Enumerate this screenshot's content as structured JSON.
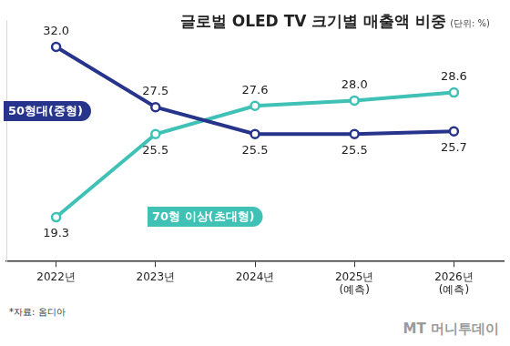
{
  "chart_data": {
    "type": "line",
    "title": "글로벌 OLED TV 크기별 매출액 비중",
    "subtitle": "(단위: %)",
    "categories": [
      "2022년",
      "2023년",
      "2024년",
      "2025년\n(예측)",
      "2026년\n(예측)"
    ],
    "series": [
      {
        "name": "50형대(중형)",
        "color": "#27348b",
        "values": [
          32.0,
          27.5,
          25.5,
          25.5,
          25.7
        ],
        "value_labels": [
          "32.0",
          "27.5",
          "25.5",
          "25.5",
          "25.7"
        ]
      },
      {
        "name": "70형 이상(초대형)",
        "color": "#3fc1b6",
        "values": [
          19.3,
          25.5,
          27.6,
          28.0,
          28.6
        ],
        "value_labels": [
          "19.3",
          "25.5",
          "27.6",
          "28.0",
          "28.6"
        ]
      }
    ],
    "ylim": [
      16,
      34
    ],
    "grid": false,
    "data_labels": true,
    "tick_labels": "x",
    "marker": "circle",
    "source": "*자료: 옴디아",
    "credit": "MT 머니투데이"
  }
}
